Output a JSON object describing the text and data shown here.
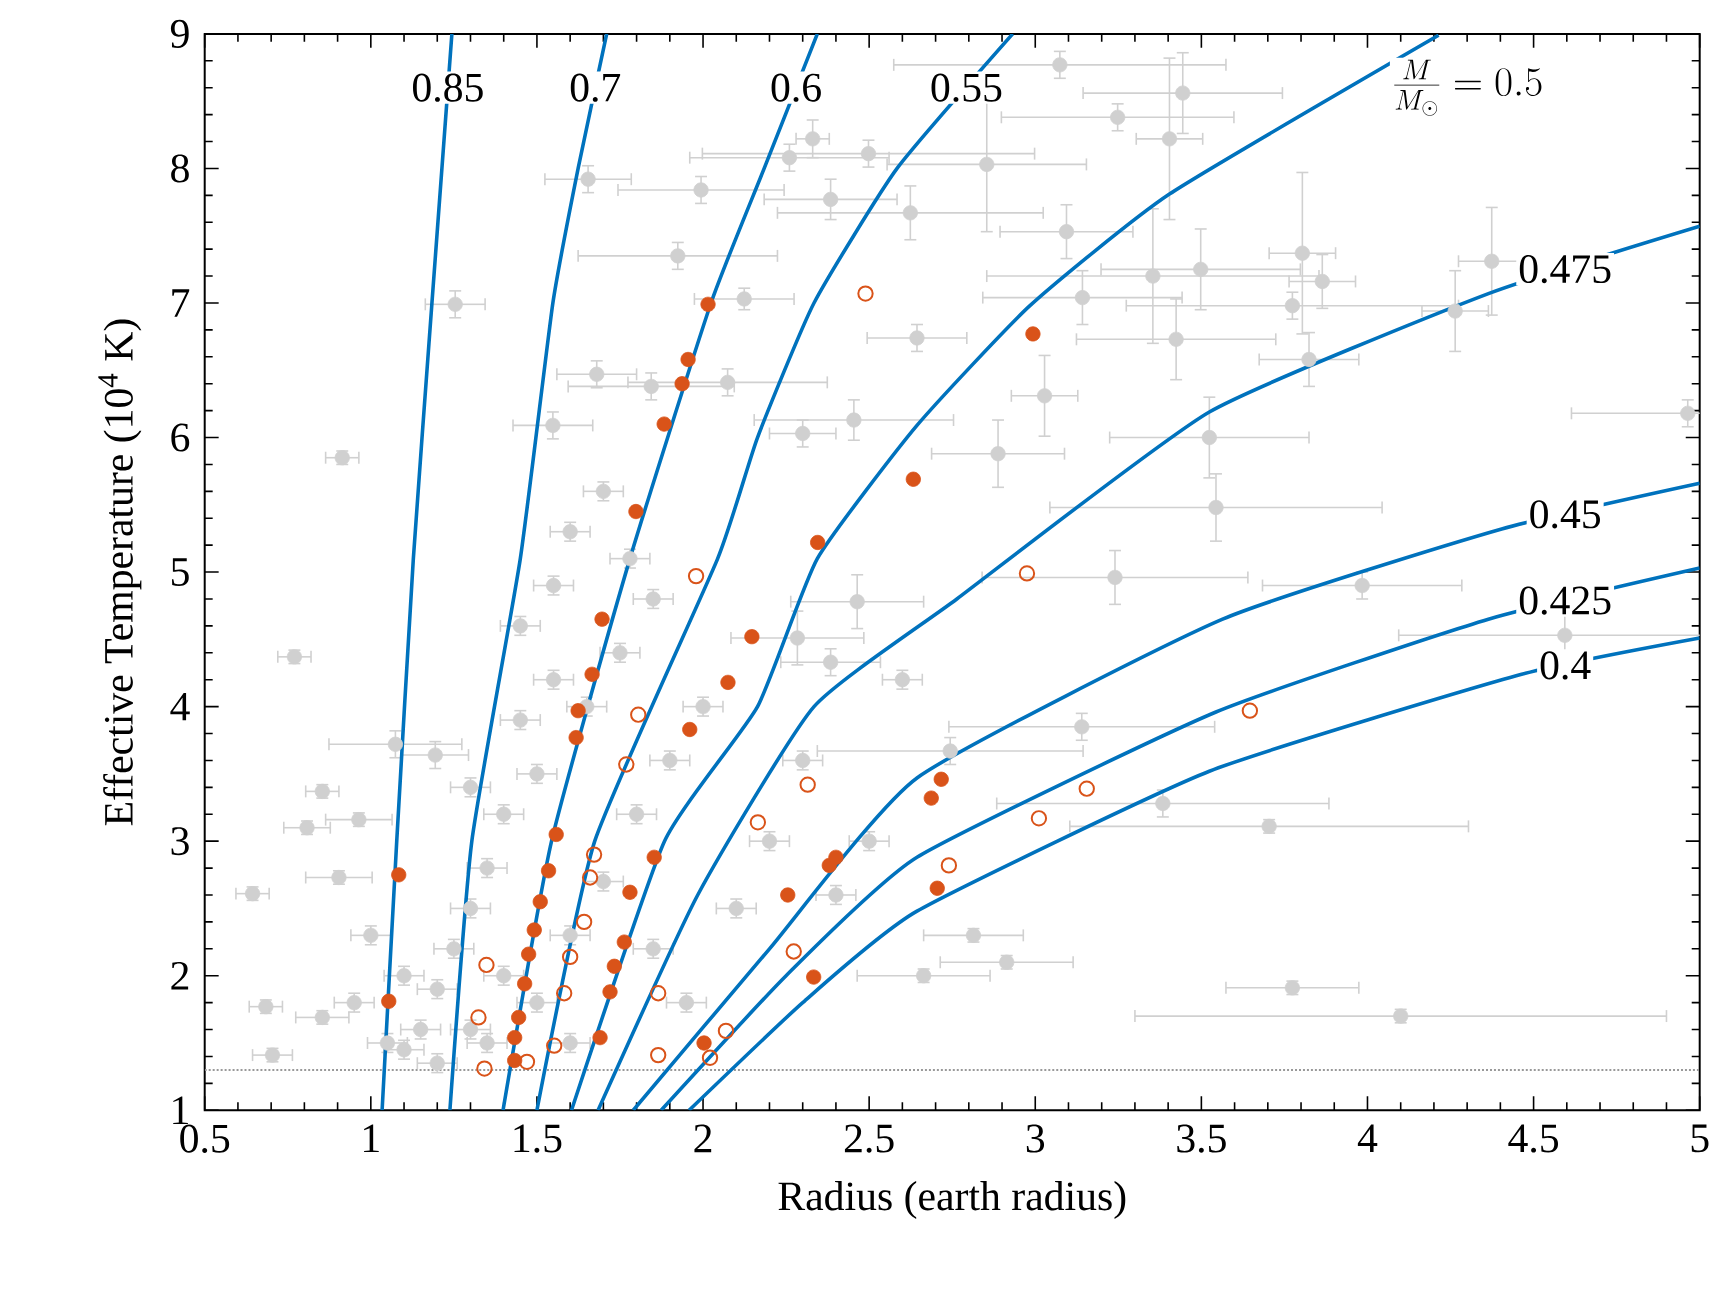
{
  "chart_data": {
    "type": "scatter",
    "xlabel": "Radius (earth radius)",
    "ylabel": "Effective Temperature (10$^{4}$ K)",
    "xlim": [
      0.5,
      5
    ],
    "ylim": [
      1,
      9
    ],
    "xticks": [
      0.5,
      1,
      1.5,
      2,
      2.5,
      3,
      3.5,
      4,
      4.5,
      5
    ],
    "yticks": [
      1,
      2,
      3,
      4,
      5,
      6,
      7,
      8,
      9
    ],
    "ref_lines": [
      {
        "axis": "y",
        "value": 1.3,
        "line_style": "dotted",
        "color": "#999999"
      }
    ],
    "series": [
      {
        "type": "scatter",
        "color": "#d0d0d0",
        "marker": "circle",
        "x": [
          2.33,
          1.654,
          1.994,
          2.498,
          2.26,
          1.254,
          0.914,
          2.124,
          1.844,
          1.548,
          1.68,
          2.074,
          2.454,
          2.3,
          1.924,
          2.624,
          2.384,
          2.644,
          3.074,
          3.444,
          3.248,
          3.404,
          2.854,
          3.094,
          3.354,
          3.498,
          3.804,
          3.864,
          3.774,
          3.142,
          3.424,
          3.824,
          3.028,
          2.888,
          3.524,
          3.544,
          4.264,
          4.374,
          4.964,
          3.24,
          3.984,
          3.14,
          3.384,
          3.704,
          3.774,
          4.1,
          4.594,
          2.744,
          2.814,
          2.914,
          2.664,
          0.77,
          0.644,
          0.684,
          0.704,
          0.854,
          0.808,
          0.964,
          1.074,
          1.194,
          2.464,
          2.384,
          2.284,
          0.854,
          0.904,
          1.45,
          1.55,
          1.6,
          1.7,
          1.78,
          1.65,
          1.5,
          1.4,
          1.35,
          1.3,
          1.25,
          1.2,
          1.15,
          1.1,
          1.2,
          1.35,
          1.5,
          1.6,
          1.7,
          1.8,
          1.9,
          2.0,
          1.85,
          1.95,
          2.1,
          2.2,
          1.75,
          1.85,
          1.55,
          1.45,
          1.3,
          1.0,
          1.05,
          0.95,
          1.1,
          1.4,
          1.3,
          1.6,
          2.4,
          2.5,
          2.3,
          2.6
        ],
        "values": [
          8.22,
          7.92,
          7.84,
          8.11,
          8.08,
          6.99,
          5.85,
          7.03,
          6.38,
          6.09,
          6.47,
          6.41,
          6.13,
          6.03,
          7.35,
          7.67,
          7.77,
          6.74,
          8.77,
          8.56,
          8.38,
          8.22,
          8.03,
          7.53,
          7.2,
          7.25,
          7.37,
          7.16,
          6.98,
          7.04,
          6.73,
          6.58,
          6.31,
          5.88,
          6.0,
          5.48,
          6.94,
          7.31,
          6.18,
          4.96,
          4.9,
          3.85,
          3.28,
          3.11,
          1.91,
          1.7,
          4.53,
          3.67,
          2.3,
          2.1,
          2.0,
          4.37,
          2.61,
          1.77,
          1.41,
          3.37,
          3.1,
          3.16,
          3.72,
          3.64,
          4.78,
          4.33,
          4.51,
          1.69,
          2.73,
          4.6,
          4.9,
          5.3,
          5.6,
          5.1,
          4.0,
          3.5,
          3.2,
          2.8,
          2.5,
          2.2,
          1.9,
          1.6,
          1.45,
          1.35,
          1.5,
          1.8,
          2.3,
          2.7,
          3.2,
          3.6,
          4.0,
          2.2,
          1.8,
          2.5,
          3.0,
          4.4,
          4.8,
          4.2,
          3.9,
          3.4,
          2.3,
          1.5,
          1.8,
          2.0,
          2.0,
          1.6,
          1.5,
          2.6,
          3.0,
          3.6,
          4.2
        ],
        "xerrors": [
          0.05,
          0.13,
          0.25,
          0.5,
          0.3,
          0.09,
          0.05,
          0.15,
          0.25,
          0.12,
          0.12,
          0.3,
          0.3,
          0.1,
          0.3,
          0.4,
          0.2,
          0.15,
          0.5,
          0.3,
          0.35,
          0.1,
          0.3,
          0.2,
          0.5,
          0.3,
          0.1,
          0.1,
          0.5,
          0.3,
          0.3,
          0.15,
          0.1,
          0.2,
          0.3,
          0.5,
          0.1,
          0.1,
          0.35,
          0.4,
          0.3,
          0.4,
          0.5,
          0.6,
          0.2,
          0.8,
          0.5,
          0.4,
          0.15,
          0.2,
          0.2,
          0.05,
          0.05,
          0.05,
          0.06,
          0.05,
          0.07,
          0.1,
          0.2,
          0.1,
          0.2,
          0.15,
          0.2,
          0.08,
          0.1,
          0.06,
          0.06,
          0.06,
          0.06,
          0.06,
          0.06,
          0.06,
          0.06,
          0.06,
          0.06,
          0.06,
          0.06,
          0.06,
          0.06,
          0.06,
          0.06,
          0.06,
          0.06,
          0.06,
          0.06,
          0.06,
          0.06,
          0.06,
          0.06,
          0.06,
          0.06,
          0.06,
          0.06,
          0.06,
          0.06,
          0.06,
          0.06,
          0.06,
          0.06,
          0.06,
          0.06,
          0.06,
          0.06,
          0.06,
          0.06,
          0.06,
          0.06
        ],
        "errors": [
          0.14,
          0.1,
          0.1,
          0.1,
          0.1,
          0.1,
          0.05,
          0.08,
          0.1,
          0.1,
          0.1,
          0.1,
          0.15,
          0.1,
          0.1,
          0.2,
          0.15,
          0.1,
          0.1,
          0.3,
          0.1,
          0.6,
          0.5,
          0.2,
          0.5,
          0.3,
          0.6,
          0.2,
          0.1,
          0.2,
          0.3,
          0.2,
          0.3,
          0.25,
          0.3,
          0.25,
          0.3,
          0.4,
          0.1,
          0.2,
          0.1,
          0.1,
          0.1,
          0.05,
          0.05,
          0.05,
          0.15,
          0.1,
          0.05,
          0.05,
          0.05,
          0.05,
          0.05,
          0.05,
          0.05,
          0.05,
          0.05,
          0.05,
          0.1,
          0.1,
          0.2,
          0.1,
          0.2,
          0.05,
          0.05,
          0.07,
          0.07,
          0.07,
          0.07,
          0.07,
          0.07,
          0.07,
          0.07,
          0.07,
          0.07,
          0.07,
          0.07,
          0.07,
          0.07,
          0.07,
          0.07,
          0.07,
          0.07,
          0.07,
          0.07,
          0.07,
          0.07,
          0.07,
          0.07,
          0.07,
          0.07,
          0.07,
          0.07,
          0.07,
          0.07,
          0.07,
          0.07,
          0.07,
          0.07,
          0.07,
          0.07,
          0.07,
          0.07,
          0.07,
          0.07,
          0.07,
          0.07
        ]
      },
      {
        "type": "line",
        "name": "0.85",
        "color": "#0072bd",
        "x": [
          1.034,
          1.078,
          1.128,
          1.184,
          1.244
        ],
        "values": [
          1,
          3,
          5.1,
          7,
          9
        ]
      },
      {
        "type": "line",
        "name": "0.7",
        "color": "#0072bd",
        "x": [
          1.238,
          1.304,
          1.45,
          1.548,
          1.624,
          1.71
        ],
        "values": [
          1,
          3,
          5.1,
          7,
          8,
          9
        ]
      },
      {
        "type": "line",
        "name": "0.6",
        "color": "#0072bd",
        "x": [
          1.398,
          1.544,
          1.78,
          2.024,
          2.184,
          2.344
        ],
        "values": [
          1,
          3,
          5.1,
          7,
          8,
          9
        ]
      },
      {
        "type": "line",
        "name": "0.55",
        "color": "#0072bd",
        "x": [
          1.5,
          1.674,
          2.044,
          2.164,
          2.334,
          2.584,
          2.932
        ],
        "values": [
          1,
          3,
          5.1,
          6,
          7,
          8,
          9
        ]
      },
      {
        "type": "line",
        "name": "\\frac{M}{M_\\odot} = 0.5",
        "color": "#0072bd",
        "x": [
          1.604,
          1.884,
          2.164,
          2.344,
          2.644,
          2.984,
          3.404,
          4.214
        ],
        "values": [
          1,
          3,
          4,
          5.1,
          6.09,
          6.98,
          7.81,
          8.99
        ]
      },
      {
        "type": "line",
        "name": "0.475",
        "color": "#0072bd",
        "x": [
          1.684,
          1.984,
          2.334,
          2.764,
          3.524,
          4.364,
          5.0
        ],
        "values": [
          1,
          2.6,
          4,
          4.8,
          6.19,
          7.07,
          7.57
        ]
      },
      {
        "type": "line",
        "name": "0.45",
        "color": "#0072bd",
        "x": [
          1.79,
          2.2,
          2.644,
          3.564,
          4.404,
          5.0
        ],
        "values": [
          1,
          2.2,
          3.47,
          4.65,
          5.32,
          5.66
        ]
      },
      {
        "type": "line",
        "name": "0.425",
        "color": "#0072bd",
        "x": [
          1.874,
          2.25,
          2.644,
          3.544,
          4.364,
          5.0
        ],
        "values": [
          1,
          2.0,
          2.88,
          3.96,
          4.65,
          5.03
        ]
      },
      {
        "type": "line",
        "name": "0.4",
        "color": "#0072bd",
        "x": [
          1.958,
          2.3,
          2.644,
          3.524,
          4.464,
          5.0
        ],
        "values": [
          1,
          1.8,
          2.48,
          3.52,
          4.24,
          4.51
        ]
      },
      {
        "color": "#d95319",
        "marker": "circle",
        "x": [
          2.015,
          1.955,
          1.937,
          1.883,
          1.798,
          1.696,
          1.666,
          1.624,
          1.618,
          1.558,
          1.535,
          1.51,
          1.492,
          1.475,
          1.463,
          1.445,
          1.433,
          1.433,
          1.084,
          1.054,
          1.78,
          1.763,
          1.733,
          1.72,
          1.69,
          1.853,
          1.96,
          2.075,
          2.147,
          2.345,
          2.633,
          2.993,
          2.255,
          2.38,
          2.4,
          2.717,
          2.687,
          2.705,
          2.333,
          2.003
        ],
        "values": [
          6.99,
          6.58,
          6.4,
          6.1,
          5.45,
          4.65,
          4.24,
          3.97,
          3.77,
          3.05,
          2.78,
          2.55,
          2.34,
          2.16,
          1.94,
          1.69,
          1.54,
          1.37,
          2.75,
          1.81,
          2.62,
          2.25,
          2.07,
          1.88,
          1.54,
          2.88,
          3.83,
          4.18,
          4.52,
          5.22,
          5.69,
          6.77,
          2.6,
          2.82,
          2.88,
          3.46,
          3.32,
          2.65,
          1.99,
          1.5
        ]
      },
      {
        "color": "#d95319",
        "marker": "circle-open",
        "x": [
          2.489,
          1.979,
          1.805,
          1.769,
          2.165,
          2.315,
          2.975,
          3.646,
          3.011,
          3.155,
          2.74,
          2.273,
          1.672,
          1.66,
          1.642,
          1.6,
          1.582,
          1.348,
          1.342,
          1.324,
          1.47,
          1.552,
          1.865,
          1.865,
          2.021,
          2.069
        ],
        "values": [
          7.07,
          4.97,
          3.94,
          3.57,
          3.14,
          3.42,
          4.99,
          3.97,
          3.17,
          3.39,
          2.82,
          2.18,
          2.9,
          2.73,
          2.4,
          2.14,
          1.87,
          2.08,
          1.31,
          1.69,
          1.36,
          1.48,
          1.87,
          1.41,
          1.39,
          1.59
        ]
      }
    ]
  }
}
